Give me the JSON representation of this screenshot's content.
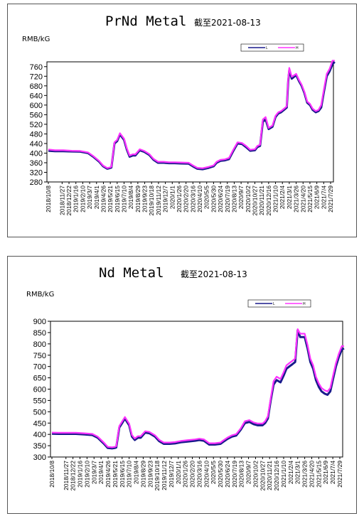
{
  "colors": {
    "low": "#1a1a8c",
    "high": "#ff33ff"
  },
  "chart_data": [
    {
      "type": "line",
      "title": "PrNd Metal",
      "subtitle": "截至2021-08-13",
      "ylabel": "RMB/kG",
      "ylim": [
        280,
        780
      ],
      "yticks": [
        280,
        320,
        360,
        400,
        440,
        480,
        520,
        560,
        600,
        640,
        680,
        720,
        760
      ],
      "grid": false,
      "legend_position": "top-right",
      "legend": [
        "L",
        "H"
      ],
      "x_ticks": [
        "2018/10/8",
        "2018/11/27",
        "2018/12/22",
        "2019/1/16",
        "2019/2/10",
        "2019/3/7",
        "2019/4/1",
        "2019/4/26",
        "2019/5/21",
        "2019/6/15",
        "2019/7/10",
        "2019/8/4",
        "2019/8/29",
        "2019/9/23",
        "2019/10/18",
        "2019/11/12",
        "2019/12/7",
        "2020/1/1",
        "2020/1/26",
        "2020/2/20",
        "2020/3/16",
        "2020/4/10",
        "2020/5/5",
        "2020/5/30",
        "2020/6/24",
        "2020/7/19",
        "2020/8/13",
        "2020/9/7",
        "2020/10/2",
        "2020/10/27",
        "2020/11/21",
        "2020/12/16",
        "2021/1/10",
        "2021/2/4",
        "2021/3/1",
        "2021/3/26",
        "2021/4/20",
        "2021/5/15",
        "2021/6/9",
        "2021/7/4",
        "2021/7/29"
      ],
      "x": [
        "2018-10-08",
        "2018-11-01",
        "2018-12-01",
        "2019-01-01",
        "2019-02-01",
        "2019-03-01",
        "2019-03-20",
        "2019-04-10",
        "2019-04-25",
        "2019-05-10",
        "2019-05-20",
        "2019-05-25",
        "2019-06-05",
        "2019-06-15",
        "2019-06-25",
        "2019-07-10",
        "2019-07-20",
        "2019-07-30",
        "2019-08-10",
        "2019-08-20",
        "2019-09-05",
        "2019-09-20",
        "2019-10-10",
        "2019-10-25",
        "2019-11-10",
        "2019-12-01",
        "2019-12-20",
        "2020-01-10",
        "2020-02-01",
        "2020-03-01",
        "2020-03-16",
        "2020-04-01",
        "2020-04-20",
        "2020-05-10",
        "2020-05-30",
        "2020-06-10",
        "2020-06-24",
        "2020-07-10",
        "2020-07-25",
        "2020-08-10",
        "2020-08-25",
        "2020-09-10",
        "2020-09-25",
        "2020-10-10",
        "2020-10-27",
        "2020-11-05",
        "2020-11-15",
        "2020-11-25",
        "2020-12-05",
        "2020-12-16",
        "2020-12-30",
        "2021-01-10",
        "2021-01-20",
        "2021-01-30",
        "2021-02-10",
        "2021-02-20",
        "2021-02-25",
        "2021-03-01",
        "2021-03-10",
        "2021-03-26",
        "2021-04-05",
        "2021-04-15",
        "2021-04-25",
        "2021-05-05",
        "2021-05-15",
        "2021-05-25",
        "2021-06-05",
        "2021-06-15",
        "2021-06-25",
        "2021-07-04",
        "2021-07-15",
        "2021-07-25",
        "2021-08-05",
        "2021-08-13"
      ],
      "series": [
        {
          "name": "L",
          "values": [
            410,
            408,
            408,
            407,
            406,
            400,
            385,
            365,
            345,
            335,
            338,
            340,
            440,
            450,
            478,
            455,
            415,
            385,
            390,
            390,
            412,
            406,
            392,
            372,
            360,
            360,
            358,
            358,
            357,
            356,
            345,
            335,
            333,
            338,
            345,
            360,
            368,
            370,
            375,
            410,
            440,
            438,
            425,
            410,
            412,
            425,
            430,
            530,
            540,
            500,
            510,
            550,
            565,
            570,
            580,
            590,
            700,
            745,
            710,
            725,
            700,
            680,
            650,
            610,
            600,
            580,
            570,
            575,
            590,
            650,
            720,
            740,
            770,
            780
          ]
        },
        {
          "name": "H",
          "values": [
            415,
            412,
            412,
            410,
            409,
            403,
            388,
            368,
            348,
            338,
            341,
            343,
            445,
            455,
            483,
            460,
            420,
            390,
            395,
            395,
            416,
            410,
            396,
            376,
            364,
            364,
            362,
            362,
            361,
            360,
            349,
            339,
            337,
            342,
            349,
            364,
            372,
            374,
            380,
            415,
            445,
            442,
            430,
            414,
            416,
            430,
            435,
            540,
            550,
            505,
            515,
            555,
            570,
            575,
            585,
            595,
            710,
            755,
            718,
            730,
            705,
            685,
            655,
            615,
            605,
            585,
            575,
            580,
            600,
            660,
            730,
            750,
            785,
            785
          ]
        }
      ]
    },
    {
      "type": "line",
      "title": "Nd Metal",
      "subtitle": "截至2021-08-13",
      "ylabel": "RMB/kG",
      "ylim": [
        300,
        900
      ],
      "yticks": [
        300,
        350,
        400,
        450,
        500,
        550,
        600,
        650,
        700,
        750,
        800,
        850,
        900
      ],
      "grid": false,
      "legend_position": "top-right",
      "legend": [
        "L",
        "H"
      ],
      "x_ticks": [
        "2018/10/8",
        "2018/11/27",
        "2018/12/22",
        "2019/1/16",
        "2019/2/10",
        "2019/3/7",
        "2019/4/1",
        "2019/4/26",
        "2019/5/21",
        "2019/6/15",
        "2019/7/10",
        "2019/8/4",
        "2019/8/29",
        "2019/9/23",
        "2019/10/18",
        "2019/11/12",
        "2019/12/7",
        "2020/1/1",
        "2020/1/26",
        "2020/2/20",
        "2020/3/16",
        "2020/4/10",
        "2020/5/5",
        "2020/5/30",
        "2020/6/24",
        "2020/7/19",
        "2020/8/13",
        "2020/9/7",
        "2020/10/2",
        "2020/10/27",
        "2020/11/21",
        "2020/12/16",
        "2021/1/10",
        "2021/2/4",
        "2021/3/1",
        "2021/3/26",
        "2021/4/20",
        "2021/5/15",
        "2021/6/9",
        "2021/7/4",
        "2021/7/29"
      ],
      "x": [
        "2018-10-08",
        "2018-11-01",
        "2018-12-01",
        "2019-01-01",
        "2019-02-01",
        "2019-03-01",
        "2019-03-20",
        "2019-04-10",
        "2019-04-25",
        "2019-05-10",
        "2019-05-20",
        "2019-05-25",
        "2019-06-05",
        "2019-06-15",
        "2019-06-25",
        "2019-07-10",
        "2019-07-20",
        "2019-07-30",
        "2019-08-10",
        "2019-08-20",
        "2019-09-05",
        "2019-09-20",
        "2019-10-10",
        "2019-10-25",
        "2019-11-10",
        "2019-12-01",
        "2019-12-20",
        "2020-01-10",
        "2020-02-01",
        "2020-03-01",
        "2020-03-16",
        "2020-04-01",
        "2020-04-20",
        "2020-05-10",
        "2020-05-30",
        "2020-06-10",
        "2020-06-24",
        "2020-07-10",
        "2020-07-25",
        "2020-08-10",
        "2020-08-25",
        "2020-09-10",
        "2020-09-25",
        "2020-10-10",
        "2020-10-27",
        "2020-11-05",
        "2020-11-15",
        "2020-11-25",
        "2020-12-05",
        "2020-12-16",
        "2020-12-30",
        "2021-01-10",
        "2021-01-20",
        "2021-01-30",
        "2021-02-10",
        "2021-02-20",
        "2021-02-25",
        "2021-03-01",
        "2021-03-10",
        "2021-03-26",
        "2021-04-05",
        "2021-04-15",
        "2021-04-25",
        "2021-05-05",
        "2021-05-15",
        "2021-05-25",
        "2021-06-05",
        "2021-06-15",
        "2021-06-25",
        "2021-07-04",
        "2021-07-15",
        "2021-07-25",
        "2021-08-05",
        "2021-08-13"
      ],
      "series": [
        {
          "name": "L",
          "values": [
            403,
            402,
            402,
            402,
            400,
            397,
            385,
            360,
            340,
            338,
            340,
            342,
            430,
            450,
            470,
            440,
            390,
            375,
            385,
            385,
            408,
            405,
            390,
            370,
            358,
            358,
            360,
            365,
            368,
            372,
            375,
            372,
            355,
            355,
            358,
            368,
            380,
            390,
            395,
            420,
            450,
            455,
            445,
            440,
            440,
            450,
            470,
            550,
            620,
            640,
            630,
            660,
            690,
            700,
            710,
            720,
            800,
            860,
            830,
            830,
            780,
            720,
            690,
            640,
            610,
            590,
            580,
            575,
            590,
            640,
            700,
            740,
            775,
            780
          ]
        },
        {
          "name": "H",
          "values": [
            408,
            407,
            407,
            407,
            405,
            402,
            390,
            365,
            345,
            343,
            345,
            347,
            437,
            457,
            477,
            447,
            397,
            382,
            392,
            392,
            414,
            411,
            396,
            376,
            364,
            364,
            366,
            371,
            374,
            378,
            381,
            378,
            361,
            361,
            364,
            374,
            386,
            396,
            401,
            426,
            458,
            463,
            453,
            448,
            448,
            458,
            480,
            560,
            635,
            655,
            645,
            675,
            705,
            715,
            725,
            735,
            815,
            865,
            845,
            845,
            795,
            735,
            705,
            655,
            625,
            605,
            595,
            590,
            605,
            655,
            715,
            755,
            790,
            790
          ]
        }
      ]
    }
  ]
}
